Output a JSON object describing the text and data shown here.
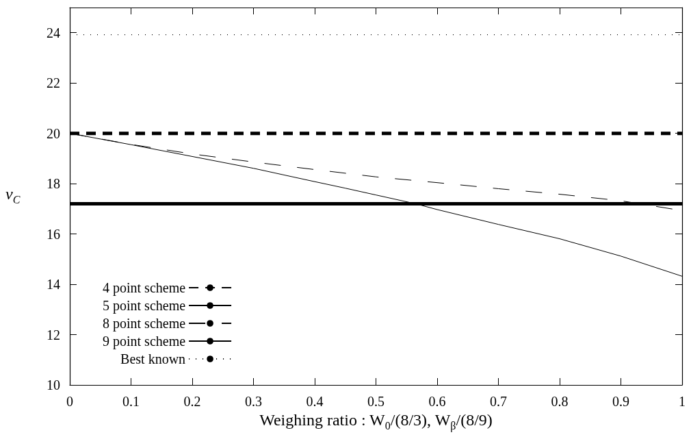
{
  "chart_data": {
    "type": "line",
    "xlabel": "Weighing ratio : W$_{0}$/(8/3), W$_{β}$/(8/9)",
    "ylabel": "v$_{C}$",
    "xlim": [
      0,
      1
    ],
    "xticks": [
      0,
      0.1,
      0.2,
      0.3,
      0.4,
      0.5,
      0.6,
      0.7,
      0.8,
      0.9,
      1
    ],
    "ylim": [
      10,
      25
    ],
    "yticks": [
      10,
      12,
      14,
      16,
      18,
      20,
      22,
      24
    ],
    "series": [
      {
        "name": "4 point scheme",
        "color": "#000000",
        "line_style": "dashed",
        "x": [
          0,
          1
        ],
        "values": [
          20,
          20
        ]
      },
      {
        "name": "5 point scheme",
        "color": "#000000",
        "line_style": "solid",
        "x": [
          0,
          0.1,
          0.2,
          0.3,
          0.4,
          0.45,
          0.5,
          0.565,
          0.6,
          0.7,
          0.8,
          0.9,
          1
        ],
        "values": [
          20,
          19.55,
          19.08,
          18.61,
          18.08,
          17.82,
          17.55,
          17.2,
          16.97,
          16.38,
          15.81,
          15.12,
          14.32
        ]
      },
      {
        "name": "8 point scheme",
        "color": "#000000",
        "line_style": "dashed",
        "x": [
          0,
          0.1,
          0.2,
          0.3,
          0.4,
          0.5,
          0.6,
          0.7,
          0.8,
          0.9,
          1
        ],
        "values": [
          20,
          19.56,
          19.18,
          18.86,
          18.56,
          18.27,
          18.04,
          17.8,
          17.58,
          17.32,
          16.93
        ]
      },
      {
        "name": "9 point scheme",
        "color": "#000000",
        "line_style": "solid",
        "x": [
          0,
          1
        ],
        "values": [
          17.2,
          17.2
        ]
      },
      {
        "name": "Best known",
        "color": "#000000",
        "line_style": "dotted",
        "x": [
          0,
          1
        ],
        "values": [
          23.92,
          23.92
        ]
      }
    ],
    "marker": "none",
    "grid": false,
    "legend": "bottom left"
  }
}
